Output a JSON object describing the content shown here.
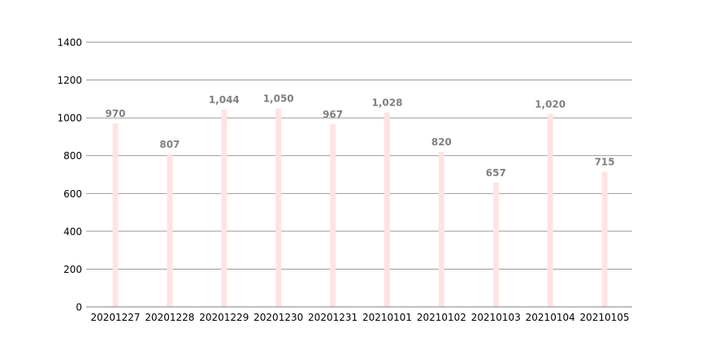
{
  "chart_data": {
    "type": "bar",
    "title": "",
    "xlabel": "",
    "ylabel": "",
    "categories": [
      "20201227",
      "20201228",
      "20201229",
      "20201230",
      "20201231",
      "20210101",
      "20210102",
      "20210103",
      "20210104",
      "20210105"
    ],
    "values": [
      970,
      807,
      1044,
      1050,
      967,
      1028,
      820,
      657,
      1020,
      715
    ],
    "value_labels": [
      "970",
      "807",
      "1,044",
      "1,050",
      "967",
      "1,028",
      "820",
      "657",
      "1,020",
      "715"
    ],
    "ylim": [
      0,
      1400
    ],
    "yticks": [
      0,
      200,
      400,
      600,
      800,
      1000,
      1200,
      1400
    ],
    "ytick_labels": [
      "0",
      "200",
      "400",
      "600",
      "800",
      "1000",
      "1200",
      "1400"
    ],
    "grid": true,
    "legend": "none",
    "colors": {
      "bar": "#ffe3e3",
      "grid": "#8c8c8c",
      "axis": "#7f7f7f",
      "data_label": "#808080",
      "tick_label": "#000000"
    }
  }
}
